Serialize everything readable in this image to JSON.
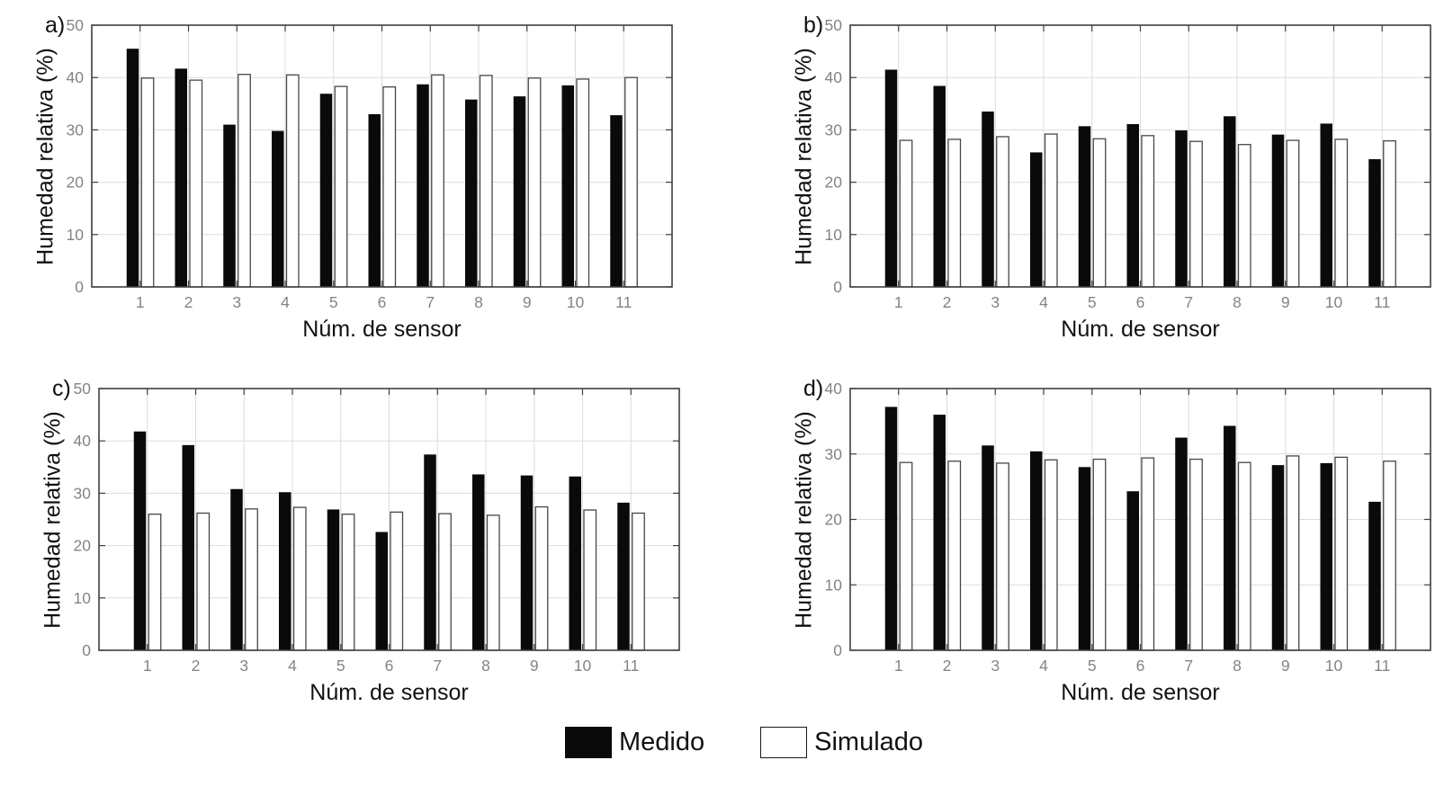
{
  "figure": {
    "background": "#ffffff",
    "xlabel": "Núm. de sensor",
    "ylabel": "Humedad relativa (%)"
  },
  "colors": {
    "bar_medido": "#0a0a0a",
    "bar_simulado_fill": "#ffffff",
    "bar_simulado_stroke": "#474747",
    "axis_box": "#3f3f3f",
    "gridline": "#dcdcdc",
    "tick_label": "#848484"
  },
  "legend": {
    "items": [
      {
        "label": "Medido",
        "fill": "#0a0a0a"
      },
      {
        "label": "Simulado",
        "fill": "#ffffff"
      }
    ]
  },
  "chart_data": [
    {
      "id": "a",
      "panel_label": "a)",
      "type": "bar",
      "xlabel": "Núm. de sensor",
      "ylabel": "Humedad relativa (%)",
      "ylim": [
        0,
        50
      ],
      "yticks": [
        0,
        10,
        20,
        30,
        40,
        50
      ],
      "grid": true,
      "legend_position": "shared-bottom",
      "categories": [
        "1",
        "2",
        "3",
        "4",
        "5",
        "6",
        "7",
        "8",
        "9",
        "10",
        "11"
      ],
      "series": [
        {
          "name": "Medido",
          "values": [
            45.5,
            41.7,
            31.0,
            29.8,
            36.9,
            33.0,
            38.7,
            35.8,
            36.4,
            38.5,
            32.8
          ]
        },
        {
          "name": "Simulado",
          "values": [
            39.9,
            39.5,
            40.6,
            40.5,
            38.3,
            38.2,
            40.5,
            40.4,
            39.9,
            39.7,
            40.0
          ]
        }
      ]
    },
    {
      "id": "b",
      "panel_label": "b)",
      "type": "bar",
      "xlabel": "Núm. de sensor",
      "ylabel": "Humedad relativa (%)",
      "ylim": [
        0,
        50
      ],
      "yticks": [
        0,
        10,
        20,
        30,
        40,
        50
      ],
      "grid": true,
      "legend_position": "shared-bottom",
      "categories": [
        "1",
        "2",
        "3",
        "4",
        "5",
        "6",
        "7",
        "8",
        "9",
        "10",
        "11"
      ],
      "series": [
        {
          "name": "Medido",
          "values": [
            41.5,
            38.4,
            33.5,
            25.7,
            30.7,
            31.1,
            29.9,
            32.6,
            29.1,
            31.2,
            24.4
          ]
        },
        {
          "name": "Simulado",
          "values": [
            28.0,
            28.2,
            28.7,
            29.2,
            28.3,
            28.9,
            27.8,
            27.2,
            28.0,
            28.2,
            27.9
          ]
        }
      ]
    },
    {
      "id": "c",
      "panel_label": "c)",
      "type": "bar",
      "xlabel": "Núm. de sensor",
      "ylabel": "Humedad relativa (%)",
      "ylim": [
        0,
        50
      ],
      "yticks": [
        0,
        10,
        20,
        30,
        40,
        50
      ],
      "grid": true,
      "legend_position": "shared-bottom",
      "categories": [
        "1",
        "2",
        "3",
        "4",
        "5",
        "6",
        "7",
        "8",
        "9",
        "10",
        "11"
      ],
      "series": [
        {
          "name": "Medido",
          "values": [
            41.8,
            39.2,
            30.8,
            30.2,
            26.9,
            22.6,
            37.4,
            33.6,
            33.4,
            33.2,
            28.2
          ]
        },
        {
          "name": "Simulado",
          "values": [
            26.0,
            26.2,
            27.0,
            27.3,
            26.0,
            26.4,
            26.1,
            25.8,
            27.4,
            26.8,
            26.2
          ]
        }
      ]
    },
    {
      "id": "d",
      "panel_label": "d)",
      "type": "bar",
      "xlabel": "Núm. de sensor",
      "ylabel": "Humedad relativa (%)",
      "ylim": [
        0,
        40
      ],
      "yticks": [
        0,
        10,
        20,
        30,
        40
      ],
      "grid": true,
      "legend_position": "shared-bottom",
      "categories": [
        "1",
        "2",
        "3",
        "4",
        "5",
        "6",
        "7",
        "8",
        "9",
        "10",
        "11"
      ],
      "series": [
        {
          "name": "Medido",
          "values": [
            37.2,
            36.0,
            31.3,
            30.4,
            28.0,
            24.3,
            32.5,
            34.3,
            28.3,
            28.6,
            22.7
          ]
        },
        {
          "name": "Simulado",
          "values": [
            28.7,
            28.9,
            28.6,
            29.1,
            29.2,
            29.4,
            29.2,
            28.7,
            29.7,
            29.5,
            28.9
          ]
        }
      ]
    }
  ]
}
